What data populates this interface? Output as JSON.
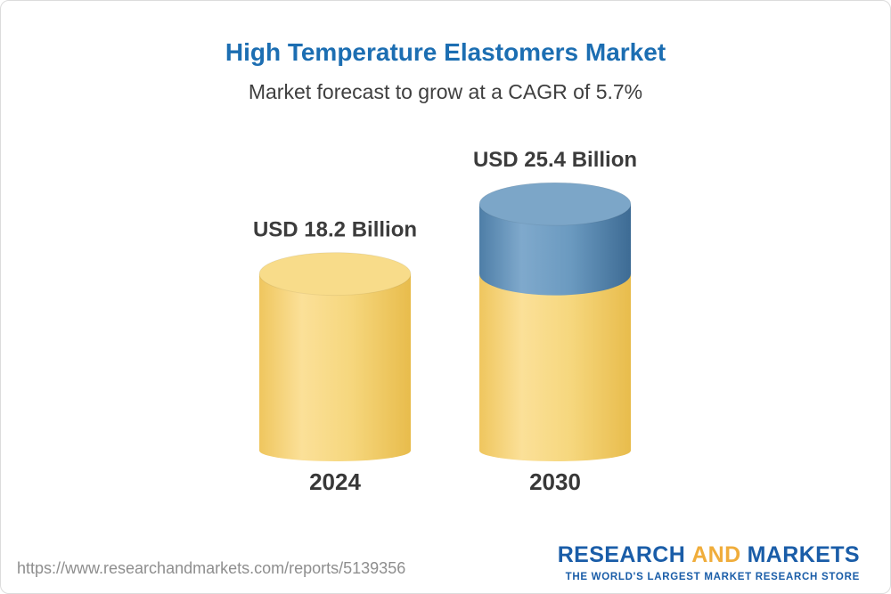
{
  "header": {
    "title": "High Temperature Elastomers Market",
    "subtitle": "Market forecast to grow at a CAGR of 5.7%"
  },
  "chart_data": {
    "type": "bar",
    "style": "3d-cylinder",
    "title": "High Temperature Elastomers Market",
    "subtitle": "Market forecast to grow at a CAGR of 5.7%",
    "cagr_percent": 5.7,
    "unit": "USD Billion",
    "categories": [
      "2024",
      "2030"
    ],
    "values": [
      18.2,
      25.4
    ],
    "value_labels": [
      "USD 18.2 Billion",
      "USD 25.4 Billion"
    ],
    "series": [
      {
        "name": "gold-segment",
        "values": [
          18.2,
          18.2
        ]
      },
      {
        "name": "blue-growth-segment",
        "values": [
          0,
          7.2
        ]
      }
    ],
    "ylim": [
      0,
      25.4
    ],
    "grid": false,
    "legend": false,
    "xlabel": "",
    "ylabel": "",
    "colors": {
      "gold_body": [
        "#EFC65E",
        "#FBE098",
        "#F6D77E",
        "#E8BC4C"
      ],
      "gold_top": "#F8DC8A",
      "blue_body": [
        "#4E7EA7",
        "#7FA9CC",
        "#6B9AC0",
        "#3D6B94"
      ],
      "blue_top": "#7CA6C8"
    }
  },
  "footer": {
    "url": "https://www.researchandmarkets.com/reports/5139356",
    "logo": {
      "part1": "RESEARCH",
      "part2": "AND",
      "part3": "MARKETS",
      "tagline": "THE WORLD'S LARGEST MARKET RESEARCH STORE"
    }
  },
  "colors": {
    "title_blue": "#1C6EB2",
    "logo_blue": "#1A5DA8",
    "logo_gold": "#F0AD3B",
    "border": "#DCDCDC",
    "url_gray": "#8E8E8E"
  }
}
